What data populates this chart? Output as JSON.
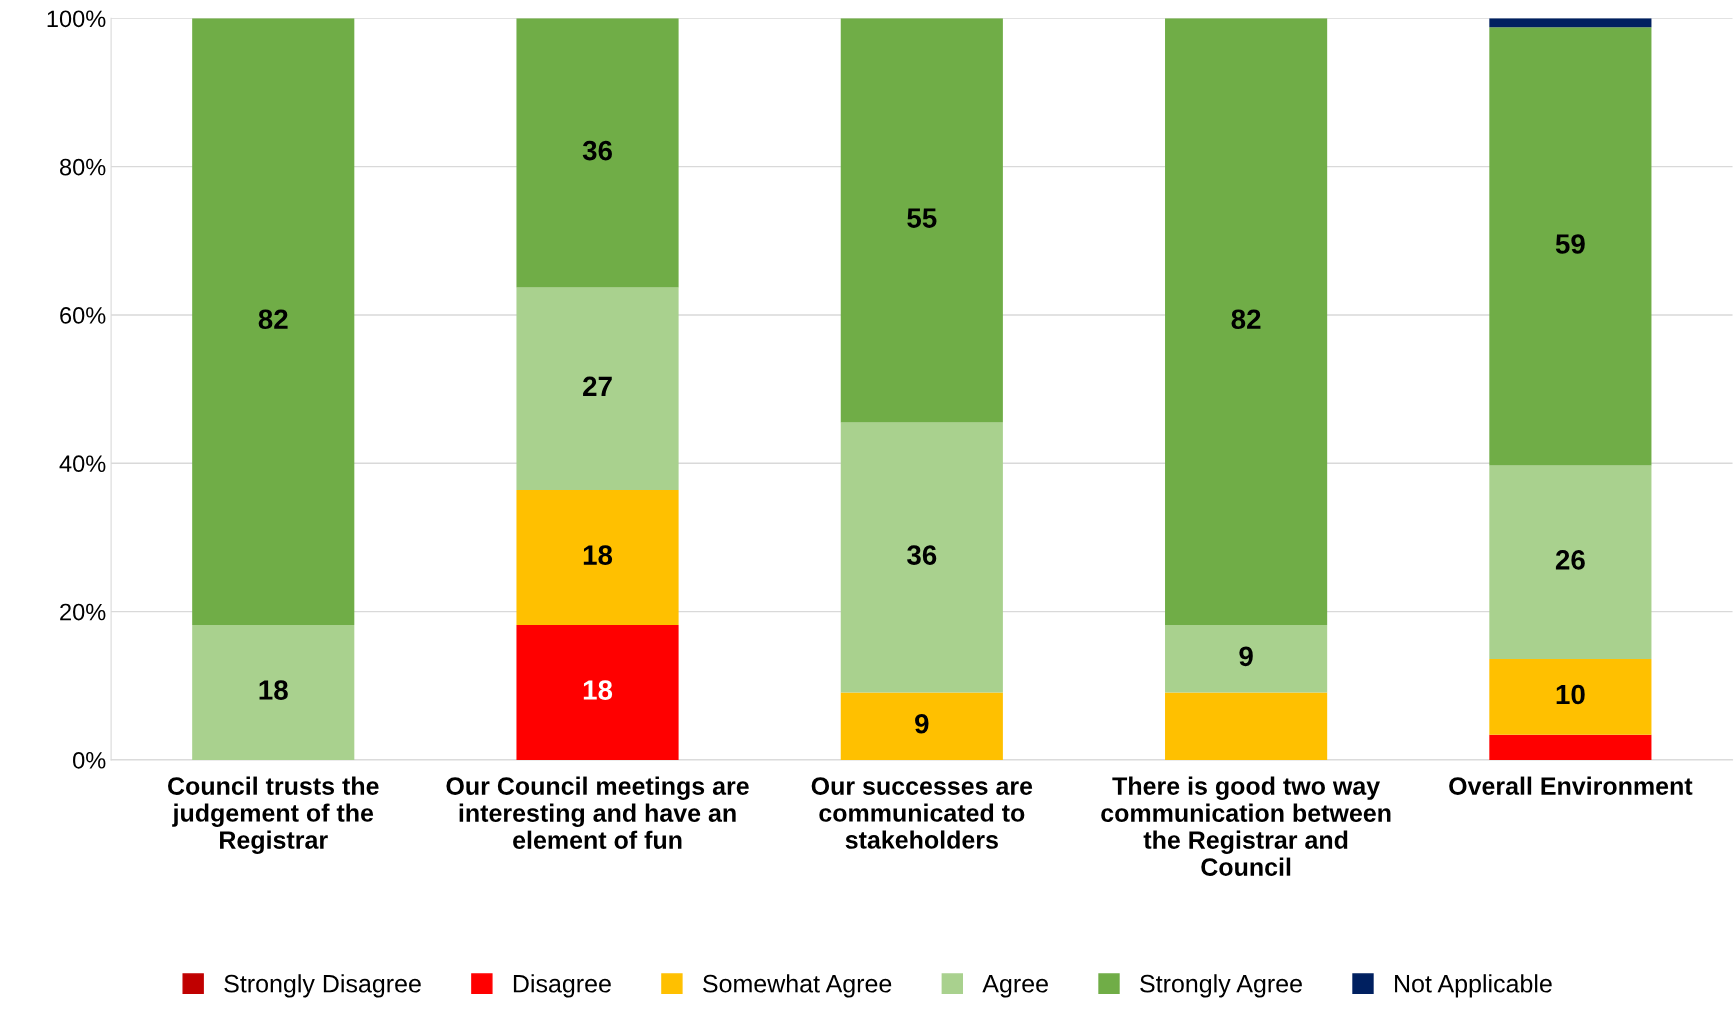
{
  "chart_data": {
    "type": "bar",
    "stacked": true,
    "categories": [
      "Council trusts the judgement of the Registrar",
      "Our Council meetings are interesting and have an element of fun",
      "Our successes are communicated to stakeholders",
      "There is good two way communication between the Registrar and Council",
      "Overall Environment"
    ],
    "series": [
      {
        "name": "Strongly Disagree",
        "color": "#c00000",
        "values": [
          0,
          0,
          0,
          0,
          0
        ],
        "value_labels": [
          null,
          null,
          null,
          null,
          null
        ]
      },
      {
        "name": "Disagree",
        "color": "#ff0000",
        "values": [
          0,
          18.2,
          0,
          0,
          3.4
        ],
        "value_labels": [
          null,
          "18",
          null,
          null,
          null
        ]
      },
      {
        "name": "Somewhat Agree",
        "color": "#ffc000",
        "values": [
          0,
          18.2,
          9.1,
          9.1,
          10.2
        ],
        "value_labels": [
          null,
          "18",
          "9",
          null,
          "10"
        ]
      },
      {
        "name": "Agree",
        "color": "#a9d18e",
        "values": [
          18.2,
          27.3,
          36.4,
          9.1,
          26.1
        ],
        "value_labels": [
          "18",
          "27",
          "36",
          "9",
          "26"
        ]
      },
      {
        "name": "Strongly Agree",
        "color": "#70ad47",
        "values": [
          81.8,
          36.3,
          54.5,
          81.8,
          59.1
        ],
        "value_labels": [
          "82",
          "36",
          "55",
          "82",
          "59"
        ]
      },
      {
        "name": "Not Applicable",
        "color": "#002060",
        "values": [
          0,
          0,
          0,
          0,
          1.2
        ],
        "value_labels": [
          null,
          null,
          null,
          null,
          null
        ]
      }
    ],
    "ylim": [
      0,
      100
    ],
    "yticks": [
      {
        "value": 0,
        "label": "0%"
      },
      {
        "value": 20,
        "label": "20%"
      },
      {
        "value": 40,
        "label": "40%"
      },
      {
        "value": 60,
        "label": "60%"
      },
      {
        "value": 80,
        "label": "80%"
      },
      {
        "value": 100,
        "label": "100%"
      }
    ],
    "grid": "y",
    "legend": "bottom"
  }
}
